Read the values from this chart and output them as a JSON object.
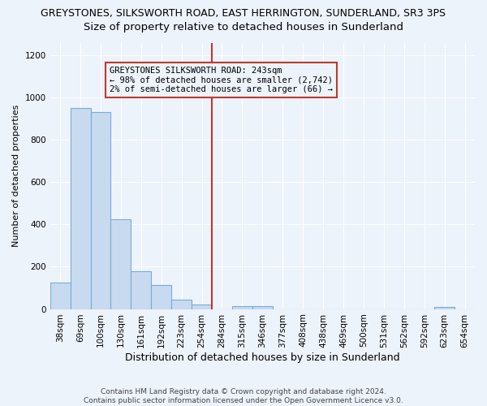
{
  "title": "GREYSTONES, SILKSWORTH ROAD, EAST HERRINGTON, SUNDERLAND, SR3 3PS",
  "subtitle": "Size of property relative to detached houses in Sunderland",
  "xlabel": "Distribution of detached houses by size in Sunderland",
  "ylabel": "Number of detached properties",
  "categories": [
    "38sqm",
    "69sqm",
    "100sqm",
    "130sqm",
    "161sqm",
    "192sqm",
    "223sqm",
    "254sqm",
    "284sqm",
    "315sqm",
    "346sqm",
    "377sqm",
    "408sqm",
    "438sqm",
    "469sqm",
    "500sqm",
    "531sqm",
    "562sqm",
    "592sqm",
    "623sqm",
    "654sqm"
  ],
  "values": [
    125,
    950,
    930,
    425,
    180,
    112,
    45,
    20,
    0,
    15,
    15,
    0,
    0,
    0,
    0,
    0,
    0,
    0,
    0,
    8,
    0
  ],
  "bar_color": "#c8daf0",
  "bar_edge_color": "#7aacd4",
  "vline_index": 7.5,
  "vline_color": "#c0392b",
  "annotation_text": "GREYSTONES SILKSWORTH ROAD: 243sqm\n← 98% of detached houses are smaller (2,742)\n2% of semi-detached houses are larger (66) →",
  "annotation_box_color": "#c0392b",
  "ylim": [
    0,
    1260
  ],
  "yticks": [
    0,
    200,
    400,
    600,
    800,
    1000,
    1200
  ],
  "background_color": "#edf3fb",
  "grid_color": "#d0dff0",
  "footer": "Contains HM Land Registry data © Crown copyright and database right 2024.\nContains public sector information licensed under the Open Government Licence v3.0.",
  "title_fontsize": 9,
  "subtitle_fontsize": 9.5,
  "xlabel_fontsize": 9,
  "ylabel_fontsize": 8,
  "tick_fontsize": 7.5,
  "footer_fontsize": 6.5
}
